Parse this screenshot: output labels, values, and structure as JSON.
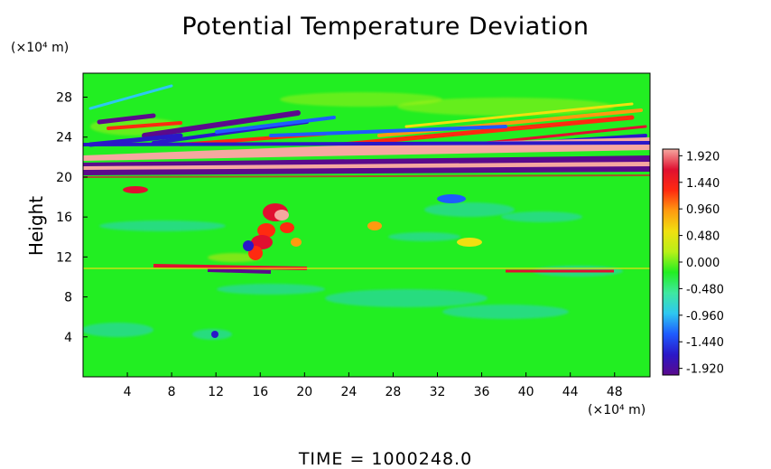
{
  "chart_data": {
    "type": "heatmap",
    "title": "Potential Temperature Deviation",
    "ylabel": "Height",
    "xlabel": "",
    "x_unit": "(×10⁴ m)",
    "y_unit": "(×10⁴ m)",
    "x_ticks": [
      "4",
      "8",
      "12",
      "16",
      "20",
      "24",
      "28",
      "32",
      "36",
      "40",
      "44",
      "48"
    ],
    "x_tick_values": [
      4,
      8,
      12,
      16,
      20,
      24,
      28,
      32,
      36,
      40,
      44,
      48
    ],
    "y_ticks": [
      "4",
      "8",
      "12",
      "16",
      "20",
      "24",
      "28"
    ],
    "y_tick_values": [
      4,
      8,
      12,
      16,
      20,
      24,
      28
    ],
    "xlim": [
      0,
      51.2
    ],
    "ylim": [
      0,
      30.4
    ],
    "colorbar": {
      "labels": [
        "1.920",
        "1.440",
        "0.960",
        "0.480",
        "0.000",
        "-0.480",
        "-0.960",
        "-1.440",
        "-1.920"
      ],
      "values": [
        1.92,
        1.44,
        0.96,
        0.48,
        0.0,
        -0.48,
        -0.96,
        -1.44,
        -1.92
      ],
      "range": [
        -2.04,
        2.04
      ],
      "colors": [
        "#5b0a8c",
        "#2a18c8",
        "#1e5cff",
        "#2ec8f0",
        "#3fe8a0",
        "#22ee22",
        "#b8f018",
        "#f0e010",
        "#ff9a10",
        "#ff2a10",
        "#e01030",
        "#f6a8a0"
      ]
    },
    "background_color": "#22ee22"
  },
  "footer": {
    "time_text": "TIME  =  1000248.0"
  }
}
